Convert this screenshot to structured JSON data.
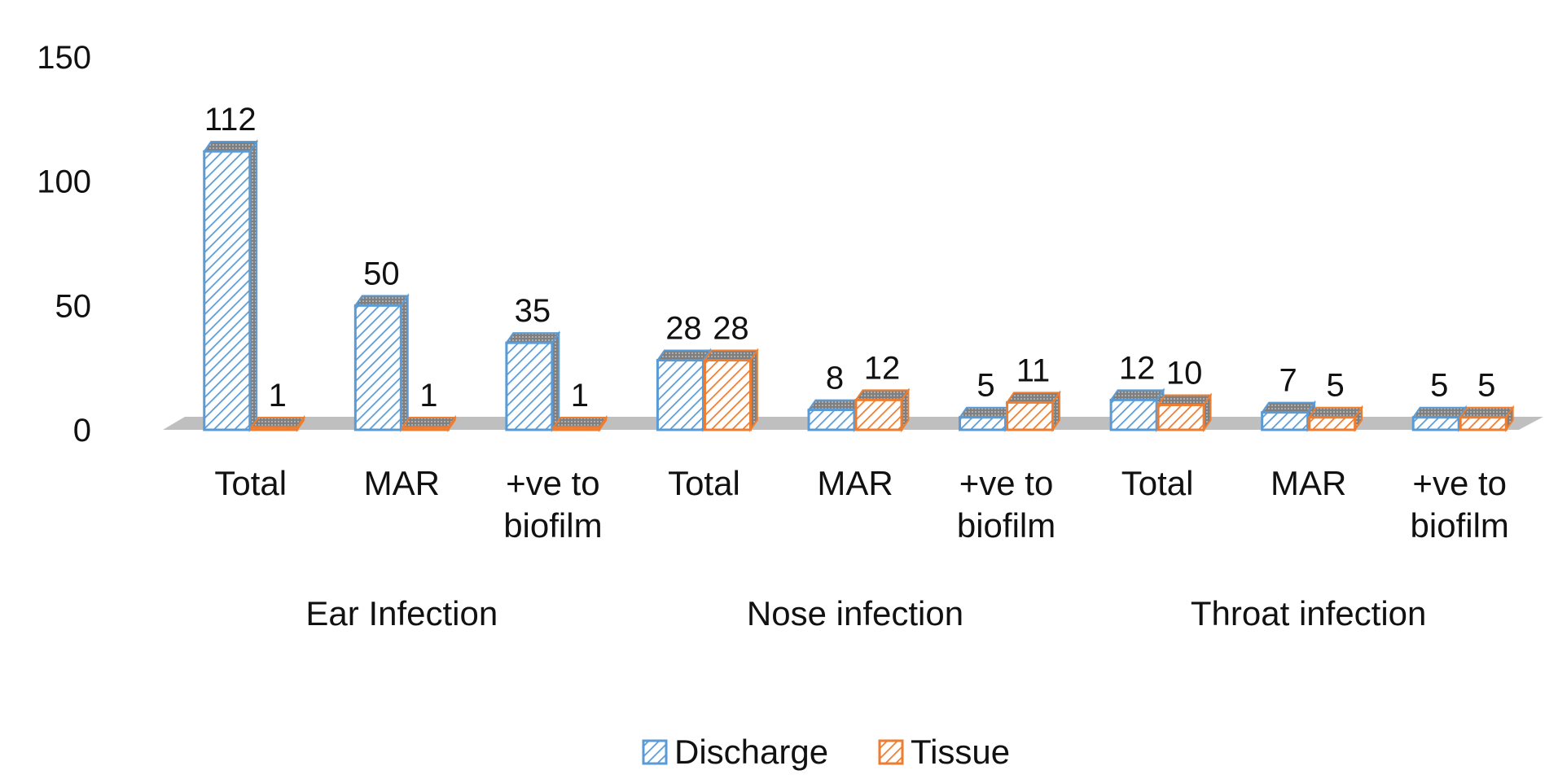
{
  "colors": {
    "discharge": "#5b9bd5",
    "tissue": "#ed7d31",
    "floor": "#bfbfbf",
    "side_shade": "#808080"
  },
  "chart_data": {
    "type": "bar",
    "title": "",
    "xlabel": "",
    "ylabel": "",
    "ylim": [
      0,
      150
    ],
    "yticks": [
      "0",
      "50",
      "100",
      "150"
    ],
    "grid": false,
    "legend_position": "bottom",
    "groups": [
      "Ear Infection",
      "Nose infection",
      "Throat infection"
    ],
    "categories": [
      "Total",
      "MAR",
      "+ve to biofilm",
      "Total",
      "MAR",
      "+ve to biofilm",
      "Total",
      "MAR",
      "+ve to biofilm"
    ],
    "category_lines": [
      [
        "Total"
      ],
      [
        "MAR"
      ],
      [
        "+ve to",
        "biofilm"
      ],
      [
        "Total"
      ],
      [
        "MAR"
      ],
      [
        "+ve to",
        "biofilm"
      ],
      [
        "Total"
      ],
      [
        "MAR"
      ],
      [
        "+ve to",
        "biofilm"
      ]
    ],
    "series": [
      {
        "name": "Discharge",
        "values": [
          112,
          50,
          35,
          28,
          8,
          5,
          12,
          7,
          5
        ],
        "labels": [
          "112",
          "50",
          "35",
          "28",
          "8",
          "5",
          "12",
          "7",
          "5"
        ]
      },
      {
        "name": "Tissue",
        "values": [
          1,
          1,
          1,
          28,
          12,
          11,
          10,
          5,
          5
        ],
        "labels": [
          "1",
          "1",
          "1",
          "28",
          "12",
          "11",
          "10",
          "5",
          "5"
        ]
      }
    ]
  }
}
